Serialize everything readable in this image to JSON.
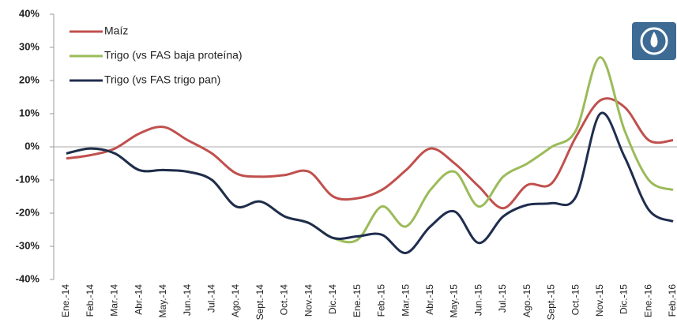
{
  "chart_data": {
    "type": "line",
    "categories": [
      "Ene.-14",
      "Feb.-14",
      "Mar.-14",
      "Abr.-14",
      "May.-14",
      "Jun.-14",
      "Jul.-14",
      "Ago.-14",
      "Sept.-14",
      "Oct.-14",
      "Nov.-14",
      "Dic.-14",
      "Ene.-15",
      "Feb.-15",
      "Mar.-15",
      "Abr.-15",
      "May.-15",
      "Jun.-15",
      "Jul.-15",
      "Ago.-15",
      "Sept.-15",
      "Oct.-15",
      "Nov.-15",
      "Dic.-15",
      "Ene.-16",
      "Feb.-16"
    ],
    "series": [
      {
        "name": "Maíz",
        "color": "#c0504d",
        "values": [
          -3.5,
          -2.5,
          -0.5,
          4,
          6,
          2,
          -2,
          -8,
          -9,
          -8.5,
          -7.5,
          -15,
          -15.5,
          -13,
          -7,
          -0.5,
          -5,
          -12,
          -18.5,
          -11.5,
          -11,
          3,
          14,
          12,
          2,
          2
        ]
      },
      {
        "name": "Trigo (vs FAS baja proteína)",
        "color": "#9bbb59",
        "values": [
          -2,
          -0.5,
          -2,
          -7,
          -7,
          -7.5,
          -10,
          -18,
          -16.5,
          -21,
          -23,
          -27.5,
          -28,
          -18,
          -24,
          -13,
          -7.5,
          -18,
          -9,
          -5,
          0,
          5,
          27,
          5,
          -10,
          -13
        ]
      },
      {
        "name": "Trigo (vs FAS trigo pan)",
        "color": "#1f2d4e",
        "values": [
          -2,
          -0.5,
          -2,
          -7,
          -7,
          -7.5,
          -10,
          -18,
          -16.5,
          -21,
          -23,
          -27.5,
          -27,
          -26.5,
          -32,
          -24,
          -19.5,
          -29,
          -21,
          -17.5,
          -17,
          -15,
          10,
          -3,
          -19,
          -22.5
        ]
      }
    ],
    "ylim": [
      -40,
      40
    ],
    "yticks": [
      {
        "value": -40,
        "label": "-40%"
      },
      {
        "value": -30,
        "label": "-30%"
      },
      {
        "value": -20,
        "label": "-20%"
      },
      {
        "value": -10,
        "label": "-10%"
      },
      {
        "value": 0,
        "label": "0%"
      },
      {
        "value": 10,
        "label": "10%"
      },
      {
        "value": 20,
        "label": "20%"
      },
      {
        "value": 30,
        "label": "30%"
      },
      {
        "value": 40,
        "label": "40%"
      }
    ],
    "grid": false,
    "legend": "upper left"
  }
}
